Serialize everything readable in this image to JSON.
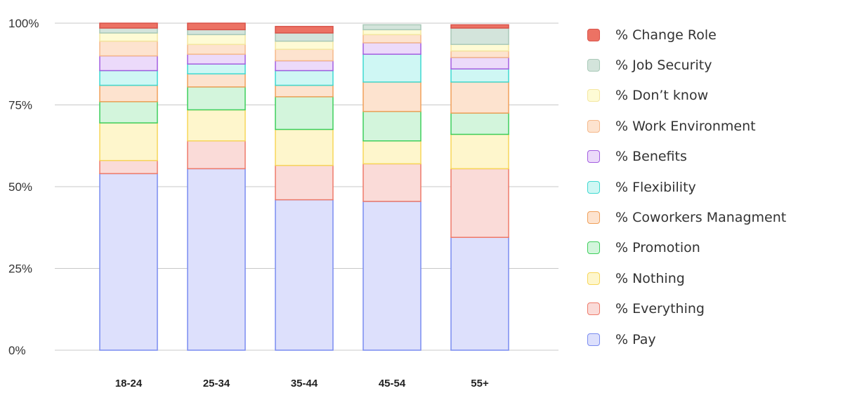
{
  "chart_data": {
    "type": "bar",
    "stacked": true,
    "categories": [
      "18-24",
      "25-34",
      "35-44",
      "45-54",
      "55+"
    ],
    "y_ticks": [
      "0%",
      "25%",
      "50%",
      "75%",
      "100%"
    ],
    "ylim": [
      0,
      100
    ],
    "grid": "horizontal",
    "legend_position": "right",
    "series": [
      {
        "name": "% Pay",
        "color": "#dde0fc",
        "edge": "#7a8cf0",
        "values": [
          54,
          55.5,
          46,
          45.5,
          34.5
        ]
      },
      {
        "name": "% Everything",
        "color": "#fadbd8",
        "edge": "#ee7a6a",
        "values": [
          4,
          8.5,
          10.5,
          11.5,
          21
        ]
      },
      {
        "name": "% Nothing",
        "color": "#fef6cc",
        "edge": "#f7d65a",
        "values": [
          11.5,
          9.5,
          11,
          7,
          10.5
        ]
      },
      {
        "name": "% Promotion",
        "color": "#d3f5dc",
        "edge": "#3ecf5c",
        "values": [
          6.5,
          7,
          10,
          9,
          6.5
        ]
      },
      {
        "name": "% Coworkers Managment",
        "color": "#fde3cf",
        "edge": "#f0a05a",
        "values": [
          5,
          4,
          3.5,
          9,
          9.5
        ]
      },
      {
        "name": "% Flexibility",
        "color": "#cff7f4",
        "edge": "#3fd9d0",
        "values": [
          4.5,
          3,
          4.5,
          8.5,
          4
        ]
      },
      {
        "name": "% Benefits",
        "color": "#ecdafa",
        "edge": "#a35ee0",
        "values": [
          4.5,
          3,
          3,
          3.5,
          3.5
        ]
      },
      {
        "name": "% Work Environment",
        "color": "#fde3cf",
        "edge": "#f5b88a",
        "values": [
          4.5,
          3,
          3.5,
          2.5,
          2
        ]
      },
      {
        "name": "% Don’t know",
        "color": "#fefbd5",
        "edge": "#f4e6a0",
        "values": [
          2.5,
          3,
          2.5,
          1.5,
          2
        ]
      },
      {
        "name": "% Job Security",
        "color": "#d3e4db",
        "edge": "#a9c9b8",
        "values": [
          1.5,
          1.5,
          2.5,
          1.5,
          5
        ]
      },
      {
        "name": "% Change Role",
        "color": "#ec7264",
        "edge": "#d9534a",
        "values": [
          1.5,
          2,
          2,
          0,
          1
        ]
      }
    ]
  }
}
